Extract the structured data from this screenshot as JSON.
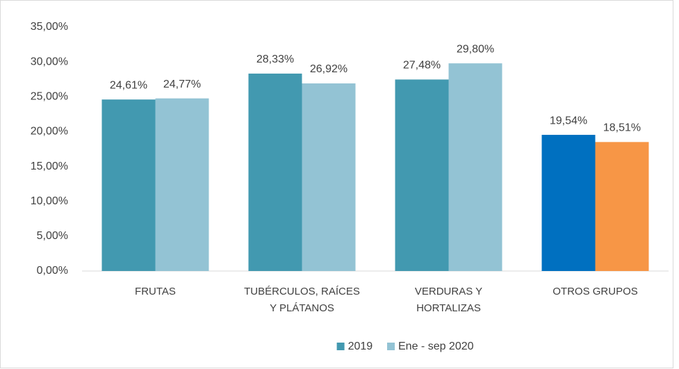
{
  "chart_data": {
    "type": "bar",
    "categories": [
      "FRUTAS",
      "TUBÉRCULOS, RAÍCES Y PLÁTANOS",
      "VERDURAS Y HORTALIZAS",
      "OTROS GRUPOS"
    ],
    "series": [
      {
        "name": "2019",
        "color": "#4299b0",
        "colors": [
          "#4299b0",
          "#4299b0",
          "#4299b0",
          "#0070c0"
        ],
        "values": [
          24.61,
          28.33,
          27.48,
          19.54
        ],
        "value_labels": [
          "24,61%",
          "28,33%",
          "27,48%",
          "19,54%"
        ]
      },
      {
        "name": "Ene - sep 2020",
        "color": "#93c3d4",
        "colors": [
          "#93c3d4",
          "#93c3d4",
          "#93c3d4",
          "#f79646"
        ],
        "values": [
          24.77,
          26.92,
          29.8,
          18.51
        ],
        "value_labels": [
          "24,77%",
          "26,92%",
          "29,80%",
          "18,51%"
        ]
      }
    ],
    "ylim": [
      0,
      35
    ],
    "yticks": [
      {
        "value": 0,
        "label": "0,00%"
      },
      {
        "value": 5,
        "label": "5,00%"
      },
      {
        "value": 10,
        "label": "10,00%"
      },
      {
        "value": 15,
        "label": "15,00%"
      },
      {
        "value": 20,
        "label": "20,00%"
      },
      {
        "value": 25,
        "label": "25,00%"
      },
      {
        "value": 30,
        "label": "30,00%"
      },
      {
        "value": 35,
        "label": "35,00%"
      }
    ],
    "grid": false,
    "legend": "bottom"
  }
}
